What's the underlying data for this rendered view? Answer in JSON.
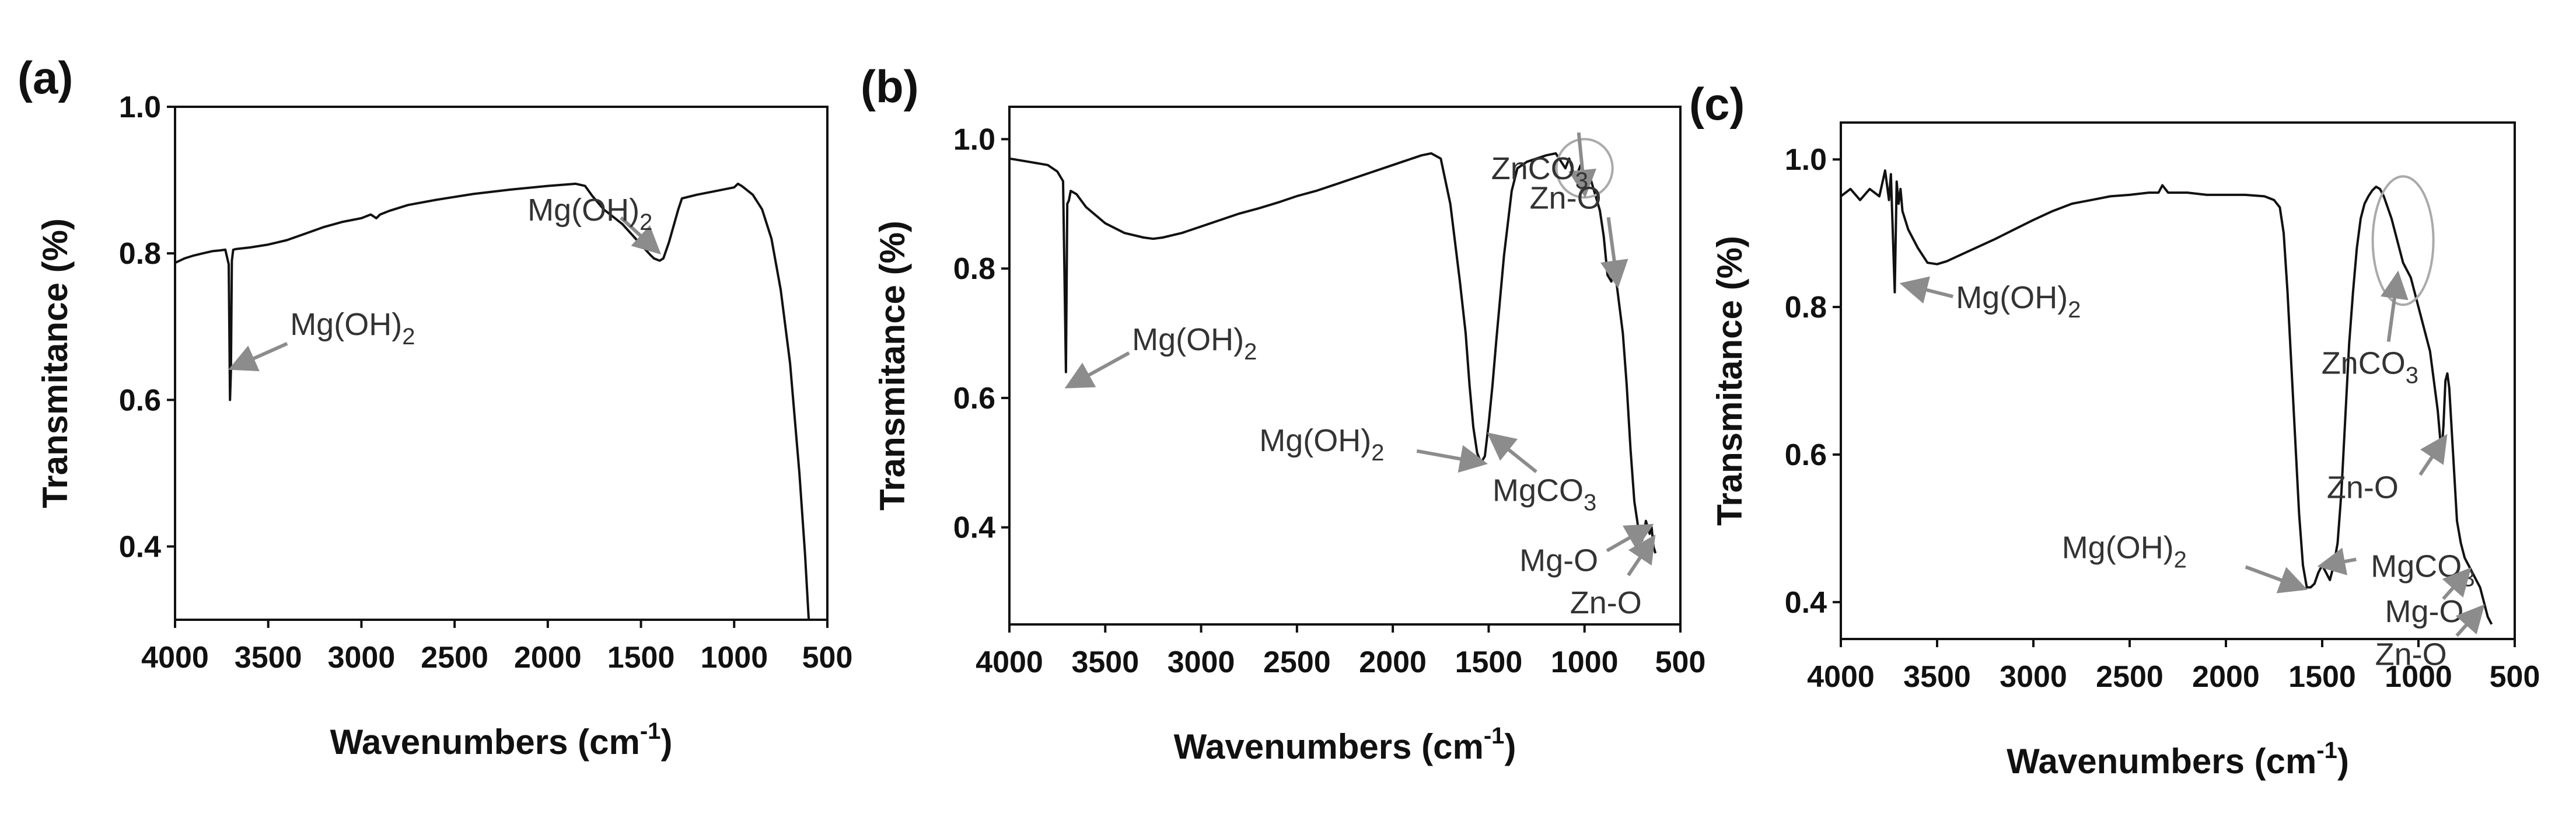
{
  "chart_data": [
    {
      "panel_label": "(a)",
      "type": "line",
      "xlabel": "Wavenumbers (cm",
      "xlabel_sup": "-1",
      "xlabel_close": ")",
      "ylabel": "Transmitance (%)",
      "xlim": [
        4000,
        500
      ],
      "ylim": [
        0.3,
        1.0
      ],
      "xticks": [
        "4000",
        "3500",
        "3000",
        "2500",
        "2000",
        "1500",
        "1000",
        "500"
      ],
      "yticks": [
        "0.4",
        "0.6",
        "0.8",
        "1.0"
      ],
      "grid": false,
      "series": [
        {
          "x": [
            4000,
            3950,
            3900,
            3850,
            3800,
            3760,
            3730,
            3712,
            3705,
            3700,
            3695,
            3688,
            3670,
            3600,
            3500,
            3400,
            3300,
            3200,
            3100,
            3000,
            2950,
            2920,
            2900,
            2850,
            2750,
            2600,
            2400,
            2200,
            2000,
            1850,
            1800,
            1760,
            1700,
            1600,
            1500,
            1450,
            1430,
            1400,
            1380,
            1350,
            1300,
            1280,
            1200,
            1100,
            1000,
            980,
            960,
            950,
            900,
            850,
            800,
            750,
            700,
            650,
            620,
            600
          ],
          "y": [
            0.787,
            0.793,
            0.797,
            0.8,
            0.803,
            0.804,
            0.805,
            0.785,
            0.6,
            0.64,
            0.79,
            0.805,
            0.806,
            0.808,
            0.812,
            0.818,
            0.827,
            0.836,
            0.843,
            0.848,
            0.853,
            0.848,
            0.853,
            0.858,
            0.866,
            0.873,
            0.881,
            0.887,
            0.892,
            0.895,
            0.892,
            0.878,
            0.86,
            0.84,
            0.812,
            0.798,
            0.793,
            0.79,
            0.793,
            0.815,
            0.86,
            0.875,
            0.88,
            0.885,
            0.89,
            0.895,
            0.892,
            0.89,
            0.88,
            0.86,
            0.82,
            0.75,
            0.65,
            0.5,
            0.39,
            0.3
          ]
        }
      ],
      "annotations": [
        {
          "label": "Mg(OH)",
          "sub": "2",
          "x": 3680,
          "y": 0.645
        },
        {
          "label": "Mg(OH)",
          "sub": "2",
          "x": 1420,
          "y": 0.805
        }
      ]
    },
    {
      "panel_label": "(b)",
      "type": "line",
      "xlabel": "Wavenumbers (cm",
      "xlabel_sup": "-1",
      "xlabel_close": ")",
      "ylabel": "Transmitance (%)",
      "xlim": [
        4000,
        500
      ],
      "ylim": [
        0.25,
        1.05
      ],
      "xticks": [
        "4000",
        "3500",
        "3000",
        "2500",
        "2000",
        "1500",
        "1000",
        "500"
      ],
      "yticks": [
        "0.4",
        "0.6",
        "0.8",
        "1.0"
      ],
      "grid": false,
      "series": [
        {
          "x": [
            4000,
            3900,
            3800,
            3750,
            3720,
            3705,
            3698,
            3690,
            3680,
            3650,
            3600,
            3500,
            3400,
            3300,
            3250,
            3200,
            3100,
            3000,
            2900,
            2800,
            2700,
            2600,
            2500,
            2400,
            2300,
            2200,
            2100,
            2000,
            1950,
            1900,
            1850,
            1800,
            1750,
            1700,
            1650,
            1620,
            1600,
            1580,
            1560,
            1540,
            1520,
            1500,
            1480,
            1460,
            1420,
            1380,
            1350,
            1300,
            1250,
            1200,
            1150,
            1100,
            1080,
            1060,
            1040,
            1020,
            1000,
            980,
            960,
            940,
            920,
            900,
            880,
            860,
            850,
            840,
            830,
            800,
            780,
            760,
            740,
            720,
            700,
            690,
            680,
            670,
            660,
            650,
            640,
            630
          ],
          "y": [
            0.97,
            0.965,
            0.96,
            0.95,
            0.935,
            0.64,
            0.9,
            0.905,
            0.92,
            0.915,
            0.895,
            0.87,
            0.855,
            0.848,
            0.846,
            0.848,
            0.855,
            0.865,
            0.875,
            0.885,
            0.893,
            0.902,
            0.912,
            0.92,
            0.93,
            0.94,
            0.95,
            0.96,
            0.965,
            0.97,
            0.975,
            0.978,
            0.97,
            0.9,
            0.78,
            0.7,
            0.62,
            0.555,
            0.515,
            0.5,
            0.51,
            0.56,
            0.62,
            0.69,
            0.82,
            0.92,
            0.955,
            0.965,
            0.97,
            0.975,
            0.978,
            0.955,
            0.97,
            0.95,
            0.945,
            0.96,
            0.94,
            0.95,
            0.93,
            0.91,
            0.89,
            0.85,
            0.79,
            0.78,
            0.8,
            0.795,
            0.77,
            0.7,
            0.62,
            0.52,
            0.44,
            0.4,
            0.38,
            0.39,
            0.41,
            0.4,
            0.39,
            0.4,
            0.37,
            0.36
          ]
        }
      ],
      "annotations": [
        {
          "label": "ZnCO",
          "sub": "3",
          "x": 1000,
          "y": 0.92
        },
        {
          "label": "Zn-O",
          "sub": "",
          "x": 830,
          "y": 0.78
        },
        {
          "label": "Mg(OH)",
          "sub": "2",
          "x": 3680,
          "y": 0.62
        },
        {
          "label": "Mg(OH)",
          "sub": "2",
          "x": 1540,
          "y": 0.5
        },
        {
          "label": "MgCO",
          "sub": "3",
          "x": 1480,
          "y": 0.54
        },
        {
          "label": "Mg-O",
          "sub": "",
          "x": 670,
          "y": 0.4
        },
        {
          "label": "Zn-O",
          "sub": "",
          "x": 650,
          "y": 0.38
        }
      ]
    },
    {
      "panel_label": "(c)",
      "type": "line",
      "xlabel": "Wavenumbers (cm",
      "xlabel_sup": "-1",
      "xlabel_close": ")",
      "ylabel": "Transmitance (%)",
      "xlim": [
        4000,
        500
      ],
      "ylim": [
        0.35,
        1.05
      ],
      "xticks": [
        "4000",
        "3500",
        "3000",
        "2500",
        "2000",
        "1500",
        "1000",
        "500"
      ],
      "yticks": [
        "0.4",
        "0.6",
        "0.8",
        "1.0"
      ],
      "grid": false,
      "series": [
        {
          "x": [
            4000,
            3950,
            3900,
            3850,
            3800,
            3770,
            3750,
            3740,
            3720,
            3710,
            3700,
            3690,
            3680,
            3650,
            3600,
            3550,
            3500,
            3450,
            3400,
            3300,
            3200,
            3100,
            3000,
            2900,
            2800,
            2700,
            2600,
            2500,
            2400,
            2350,
            2330,
            2300,
            2200,
            2100,
            2000,
            1900,
            1800,
            1750,
            1720,
            1700,
            1680,
            1660,
            1640,
            1620,
            1600,
            1580,
            1560,
            1540,
            1520,
            1500,
            1480,
            1460,
            1440,
            1420,
            1400,
            1380,
            1360,
            1340,
            1320,
            1300,
            1280,
            1260,
            1240,
            1220,
            1200,
            1180,
            1160,
            1140,
            1120,
            1100,
            1080,
            1060,
            1040,
            1020,
            1000,
            980,
            960,
            940,
            920,
            900,
            880,
            870,
            860,
            850,
            840,
            820,
            800,
            780,
            760,
            740,
            720,
            700,
            680,
            660,
            640,
            620
          ],
          "y": [
            0.95,
            0.96,
            0.945,
            0.96,
            0.95,
            0.985,
            0.945,
            0.98,
            0.82,
            0.97,
            0.94,
            0.96,
            0.93,
            0.905,
            0.88,
            0.86,
            0.858,
            0.862,
            0.868,
            0.88,
            0.892,
            0.905,
            0.918,
            0.93,
            0.94,
            0.945,
            0.95,
            0.952,
            0.955,
            0.955,
            0.965,
            0.955,
            0.955,
            0.952,
            0.952,
            0.952,
            0.95,
            0.945,
            0.935,
            0.9,
            0.82,
            0.72,
            0.62,
            0.52,
            0.45,
            0.42,
            0.42,
            0.425,
            0.44,
            0.45,
            0.44,
            0.43,
            0.45,
            0.48,
            0.55,
            0.65,
            0.75,
            0.82,
            0.88,
            0.92,
            0.94,
            0.95,
            0.958,
            0.963,
            0.96,
            0.95,
            0.935,
            0.92,
            0.9,
            0.88,
            0.86,
            0.85,
            0.84,
            0.82,
            0.8,
            0.78,
            0.76,
            0.74,
            0.7,
            0.66,
            0.6,
            0.64,
            0.7,
            0.71,
            0.69,
            0.6,
            0.51,
            0.48,
            0.46,
            0.45,
            0.44,
            0.43,
            0.42,
            0.4,
            0.38,
            0.37
          ]
        }
      ],
      "annotations": [
        {
          "label": "Mg(OH)",
          "sub": "2",
          "x": 3660,
          "y": 0.83
        },
        {
          "label": "ZnCO",
          "sub": "3",
          "x": 1110,
          "y": 0.84
        },
        {
          "label": "Zn-O",
          "sub": "",
          "x": 870,
          "y": 0.62
        },
        {
          "label": "Mg(OH)",
          "sub": "2",
          "x": 1610,
          "y": 0.42
        },
        {
          "label": "MgCO",
          "sub": "3",
          "x": 1490,
          "y": 0.45
        },
        {
          "label": "Mg-O",
          "sub": "",
          "x": 750,
          "y": 0.44
        },
        {
          "label": "Zn-O",
          "sub": "",
          "x": 680,
          "y": 0.39
        }
      ]
    }
  ]
}
